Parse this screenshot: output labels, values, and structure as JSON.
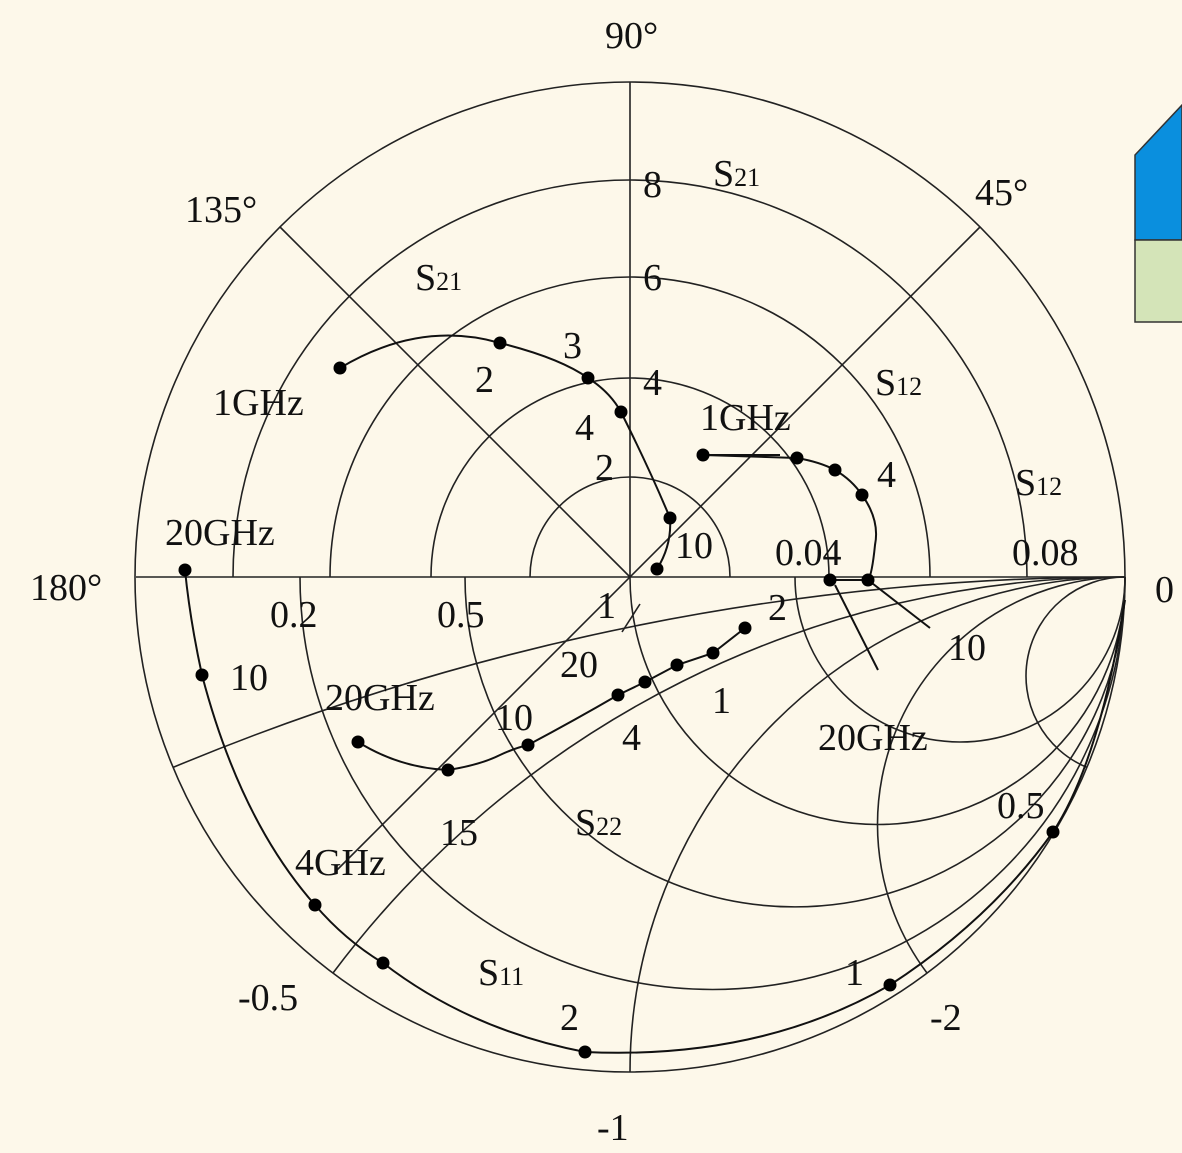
{
  "angle_labels": [
    "90°",
    "135°",
    "45°",
    "180°",
    "0"
  ],
  "polar_labels": [
    "8",
    "6",
    "4",
    "2"
  ],
  "s21_labels": [
    {
      "base": "S",
      "sub": "21"
    },
    {
      "base": "S",
      "sub": "21"
    }
  ],
  "s21_points": [
    "3",
    "2",
    "4",
    "1GHz",
    "20GHz",
    "10"
  ],
  "s12_labels": [
    {
      "base": "S",
      "sub": "12"
    },
    {
      "base": "S",
      "sub": "12"
    }
  ],
  "s12_points": [
    "1GHz",
    "4",
    "0.04",
    "0.08",
    "10",
    "20GHz"
  ],
  "smith_labels": [
    "0.2",
    "0.5",
    "1",
    "2",
    "0.5",
    "1",
    "-2",
    "-0.5",
    "-1"
  ],
  "s22_label": {
    "base": "S",
    "sub": "22"
  },
  "s22_points": [
    "20",
    "1",
    "4",
    "10",
    "20GHz",
    "15"
  ],
  "s11_label": {
    "base": "S",
    "sub": "11"
  },
  "s11_points": [
    "10",
    "4GHz",
    "2"
  ]
}
